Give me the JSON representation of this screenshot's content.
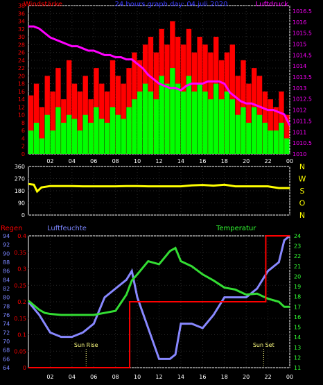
{
  "colors": {
    "background": "#000000",
    "grid": "#2a2a2a",
    "axis_red": "#ff0000",
    "axis_magenta": "#ff00ff",
    "axis_white": "#ffffff",
    "axis_blue": "#7c86ff",
    "axis_yellow": "#ffff00",
    "axis_green": "#33ff33",
    "title_blue": "#3a3aff",
    "gust": "#ff0000",
    "wind": "#00ff00",
    "pressure": "#ff00ff",
    "direction": "#ffff00",
    "rain": "#ff0000",
    "humidity": "#8888ff",
    "temperature": "#33dd33",
    "sun_labels": "#ffff80"
  },
  "x_tick_labels": [
    "02",
    "04",
    "06",
    "08",
    "10",
    "12",
    "14",
    "16",
    "18",
    "20",
    "22",
    "00"
  ],
  "chart_data": [
    {
      "type": "bar",
      "title": "24 hours graph day:  04 juli 2020",
      "left_axis_title": "Windstärke",
      "right_axis_title": "Luftdruck",
      "left_ticks": [
        "0",
        "2",
        "4",
        "6",
        "8",
        "10",
        "12",
        "14",
        "16",
        "18",
        "20",
        "22",
        "24",
        "26",
        "28",
        "30",
        "32",
        "34",
        "36",
        "38"
      ],
      "left_ylim": [
        0,
        38
      ],
      "right_ticks": [
        "1010",
        "1010.5",
        "1011",
        "1011.5",
        "1012",
        "1012.5",
        "1013",
        "1013.5",
        "1014",
        "1014.5",
        "1015",
        "1015.5",
        "1016",
        "1016.5"
      ],
      "right_ylim": [
        1010,
        1016.75
      ],
      "x_hours": [
        0.5,
        1,
        1.5,
        2,
        2.5,
        3,
        3.5,
        4,
        4.5,
        5,
        5.5,
        6,
        6.5,
        7,
        7.5,
        8,
        8.5,
        9,
        9.5,
        10,
        10.5,
        11,
        11.5,
        12,
        12.5,
        13,
        13.5,
        14,
        14.5,
        15,
        15.5,
        16,
        16.5,
        17,
        17.5,
        18,
        18.5,
        19,
        19.5,
        20,
        20.5,
        21,
        21.5,
        22,
        22.5,
        23,
        23.5,
        24
      ],
      "series": [
        {
          "name": "gust",
          "values": [
            15,
            18,
            12,
            20,
            16,
            22,
            14,
            24,
            18,
            16,
            20,
            14,
            22,
            18,
            16,
            24,
            20,
            18,
            22,
            26,
            24,
            28,
            30,
            26,
            32,
            28,
            34,
            30,
            28,
            32,
            26,
            30,
            28,
            26,
            30,
            24,
            26,
            28,
            20,
            24,
            18,
            22,
            20,
            16,
            14,
            12,
            16,
            10
          ]
        },
        {
          "name": "wind",
          "values": [
            6,
            8,
            4,
            10,
            6,
            12,
            8,
            10,
            9,
            6,
            10,
            8,
            12,
            9,
            8,
            12,
            10,
            9,
            12,
            14,
            16,
            18,
            16,
            14,
            20,
            18,
            22,
            18,
            16,
            20,
            16,
            18,
            16,
            14,
            18,
            14,
            16,
            14,
            10,
            12,
            8,
            12,
            10,
            8,
            6,
            6,
            8,
            4
          ]
        },
        {
          "name": "pressure",
          "values": [
            1015.8,
            1015.7,
            1015.5,
            1015.3,
            1015.2,
            1015.1,
            1015.0,
            1014.9,
            1014.9,
            1014.8,
            1014.7,
            1014.7,
            1014.6,
            1014.5,
            1014.5,
            1014.4,
            1014.4,
            1014.3,
            1014.3,
            1014.1,
            1013.9,
            1013.6,
            1013.4,
            1013.2,
            1013.1,
            1013.0,
            1013.0,
            1012.9,
            1013.1,
            1013.2,
            1013.2,
            1013.2,
            1013.3,
            1013.3,
            1013.3,
            1013.2,
            1012.8,
            1012.6,
            1012.4,
            1012.3,
            1012.3,
            1012.2,
            1012.1,
            1012.0,
            1012.0,
            1011.9,
            1011.8,
            1011.3
          ]
        }
      ]
    },
    {
      "type": "line",
      "left_ticks": [
        "0",
        "90",
        "180",
        "270",
        "360"
      ],
      "ylim": [
        0,
        360
      ],
      "right_labels": [
        "N",
        "W",
        "S",
        "O",
        "N"
      ],
      "x": [
        0,
        0.5,
        0.8,
        1.2,
        2,
        3,
        4,
        5,
        6,
        7,
        8,
        9,
        10,
        11,
        12,
        13,
        14,
        15,
        16,
        17,
        18,
        19,
        20,
        21,
        22,
        23,
        24
      ],
      "series": [
        {
          "name": "direction",
          "values": [
            230,
            225,
            175,
            205,
            215,
            215,
            215,
            213,
            213,
            213,
            213,
            215,
            215,
            213,
            213,
            213,
            213,
            220,
            223,
            218,
            225,
            213,
            213,
            213,
            213,
            200,
            200
          ]
        }
      ]
    },
    {
      "type": "line",
      "left_title": "Regen",
      "middle_title": "Luftfeuchte",
      "right_title": "Temperatur",
      "rain_ticks": [
        "0",
        "0.05",
        "0.1",
        "0.15",
        "0.2",
        "0.25",
        "0.3",
        "0.35",
        "0.4"
      ],
      "rain_ylim": [
        0,
        0.4
      ],
      "humidity_ticks": [
        "64",
        "66",
        "68",
        "70",
        "72",
        "74",
        "76",
        "78",
        "80",
        "82",
        "84",
        "86",
        "88",
        "90",
        "92",
        "94"
      ],
      "humidity_ylim": [
        64,
        94
      ],
      "temperature_ticks": [
        "11",
        "12",
        "13",
        "14",
        "15",
        "16",
        "17",
        "18",
        "19",
        "20",
        "21",
        "22",
        "23",
        "24"
      ],
      "temperature_ylim": [
        11,
        24
      ],
      "sun_rise_label": "Sun Rise",
      "sun_rise_hour": 5.3,
      "sun_set_label": "Sun Set",
      "sun_set_hour": 21.6,
      "x": [
        0,
        1,
        1.5,
        2,
        3,
        4,
        5,
        6,
        7,
        8,
        9,
        9.5,
        10,
        11,
        12,
        13,
        13.5,
        14,
        15,
        16,
        17,
        18,
        19,
        20,
        21,
        22,
        23,
        23.5,
        24
      ],
      "series": [
        {
          "name": "humidity",
          "values": [
            79,
            76,
            74,
            72,
            71,
            71,
            72,
            74,
            80,
            82,
            84,
            86,
            80,
            73,
            66,
            66,
            67,
            74,
            74,
            73,
            76,
            80,
            80,
            80,
            82,
            86,
            88,
            93,
            94
          ]
        },
        {
          "name": "temperature",
          "values": [
            17.6,
            16.7,
            16.4,
            16.3,
            16.2,
            16.2,
            16.2,
            16.2,
            16.4,
            16.6,
            18.2,
            19.6,
            20.2,
            21.5,
            21.2,
            22.5,
            22.8,
            21.5,
            21.0,
            20.2,
            19.6,
            18.9,
            18.7,
            18.2,
            18.3,
            17.8,
            17.5,
            17.0,
            17.0
          ]
        },
        {
          "name": "rain",
          "x": [
            0,
            9.3,
            9.3,
            21.8,
            21.8,
            24
          ],
          "values": [
            0,
            0,
            0.2,
            0.2,
            0.4,
            0.4
          ]
        }
      ]
    }
  ]
}
